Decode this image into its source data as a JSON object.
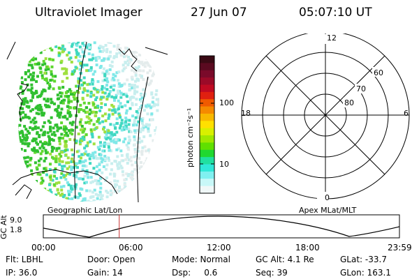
{
  "header": {
    "instrument": "Ultraviolet Imager",
    "date": "27 Jun 07",
    "time": "05:07:10 UT"
  },
  "colorbar": {
    "unit_label": "photon cm⁻²s⁻¹",
    "tick_labels": [
      "100",
      "10"
    ],
    "colors": [
      "#3a0a14",
      "#5a0a20",
      "#7a0a2a",
      "#9b0a28",
      "#c00a22",
      "#e02010",
      "#f05a00",
      "#f58a00",
      "#f8b800",
      "#ffe000",
      "#d8f000",
      "#a0e800",
      "#60e000",
      "#20d830",
      "#20e0a0",
      "#30e8d8",
      "#80f0f0",
      "#c8f8f8",
      "#f0f8f8"
    ]
  },
  "polar_plot": {
    "mlt_labels": {
      "top": "12",
      "left": "18",
      "right": "6",
      "bottom": "0"
    },
    "lat_labels": [
      "60",
      "70",
      "80"
    ]
  },
  "geo_panel": {
    "caption_left": "Geographic Lat/Lon",
    "caption_right": "Apex MLat/MLT",
    "image_colors": [
      "#30c030",
      "#60d830",
      "#a0e040",
      "#40d8c0",
      "#80e8e8",
      "#c8eeee",
      "#e4ecec"
    ]
  },
  "altitude_plot": {
    "axis_label": "GC Alt",
    "y_ticks": [
      "9.0",
      "1.8"
    ],
    "x_ticks": [
      "00:00",
      "06:00",
      "12:00",
      "18:00",
      "23:59"
    ],
    "marker_time": "05:07",
    "marker_color": "#c83030"
  },
  "status": {
    "row1": [
      "Flt: LBHL",
      "Door: Open",
      "Mode: Normal",
      "GC Alt: 4.1 Re",
      "GLat: -33.7"
    ],
    "row2": [
      "IP: 36.0",
      "Gain: 14",
      "Dsp:     0.6",
      "Seq: 39",
      "GLon: 163.1"
    ]
  }
}
